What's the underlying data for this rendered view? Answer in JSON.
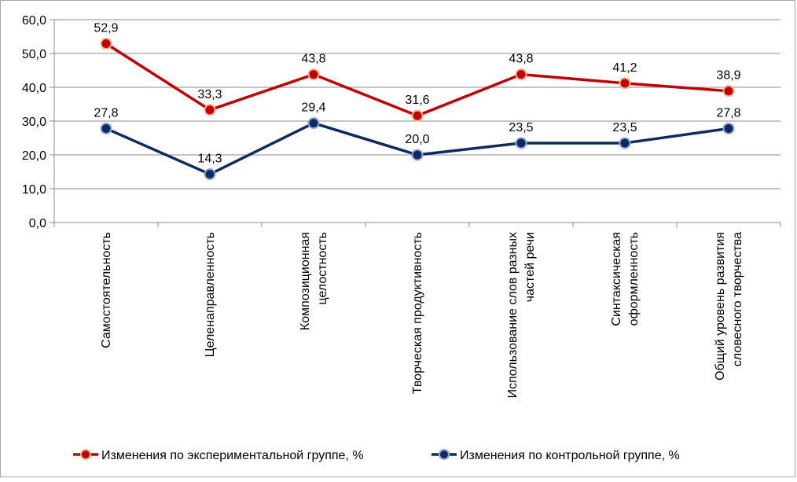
{
  "chart_data": {
    "type": "line",
    "categories": [
      [
        "Самостоятельность"
      ],
      [
        "Целенаправленность"
      ],
      [
        "Композиционная",
        "целостность"
      ],
      [
        "Творческая продуктивность"
      ],
      [
        "Использование слов разных",
        "частей речи"
      ],
      [
        "Синтаксическая",
        "оформленность"
      ],
      [
        "Общий уровень развития",
        "словесного творчества"
      ]
    ],
    "series": [
      {
        "name": "Изменения по экспериментальной группе, %",
        "values": [
          52.9,
          33.3,
          43.8,
          31.6,
          43.8,
          41.2,
          38.9
        ],
        "labels": [
          "52,9",
          "33,3",
          "43,8",
          "31,6",
          "43,8",
          "41,2",
          "38,9"
        ],
        "color": "#c00000",
        "marker_fill": "#c00000",
        "marker_edge": "#f7b08a"
      },
      {
        "name": "Изменения по контрольной группе, %",
        "values": [
          27.8,
          14.3,
          29.4,
          20.0,
          23.5,
          23.5,
          27.8
        ],
        "labels": [
          "27,8",
          "14,3",
          "29,4",
          "20,0",
          "23,5",
          "23,5",
          "27,8"
        ],
        "color": "#0e2a5e",
        "marker_fill": "#0e2a5e",
        "marker_edge": "#8fa8d6"
      }
    ],
    "ylim": [
      0,
      60
    ],
    "yticks": [
      0,
      10,
      20,
      30,
      40,
      50,
      60
    ],
    "ytick_labels": [
      "0,0",
      "10,0",
      "20,0",
      "30,0",
      "40,0",
      "50,0",
      "60,0"
    ],
    "grid": true,
    "legend_position": "bottom",
    "xlabel": "",
    "ylabel": "",
    "title": ""
  }
}
